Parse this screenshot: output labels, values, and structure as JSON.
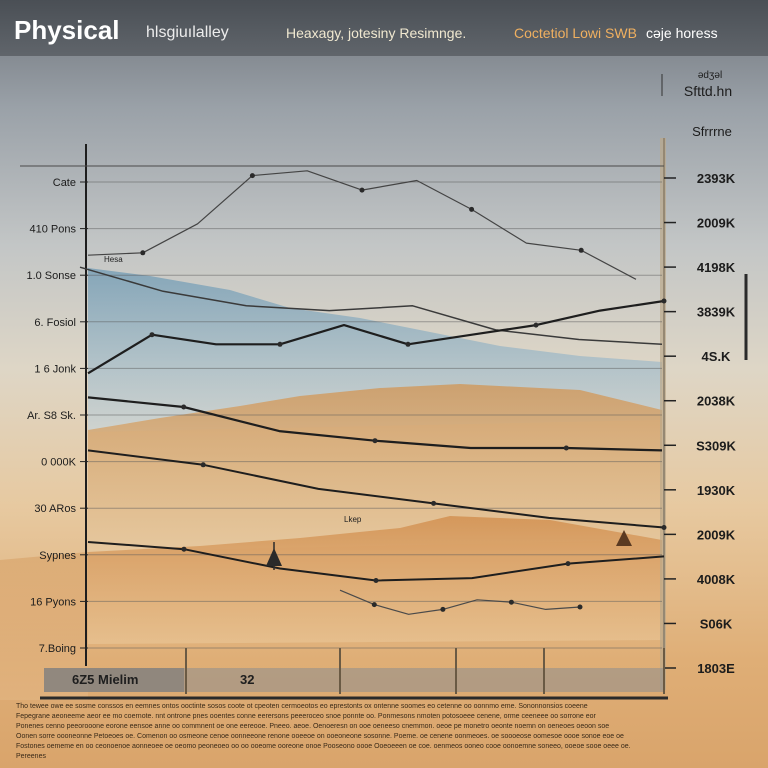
{
  "header": {
    "title": "Physical",
    "subtitle": "hlsgiuılalley",
    "tagline_a": "Heaxagy, jotesiny Resimnge.",
    "tagline_b": "Coctetiol Lowi SWB",
    "tagline_c": "cəje horess"
  },
  "chart_data": {
    "type": "line",
    "title": "Physical",
    "left_tick_labels": [
      "Cate",
      "410 Pons",
      "1.0 Sonse",
      "6. Fosiol",
      "1 6 Jonk",
      "Ar. S8 Sk.",
      "0 000K",
      "30 ARos",
      "Sypnes",
      "16 Pyons",
      "7.Boing"
    ],
    "right_tick_labels": [
      "2393K",
      "2009K",
      "4198K",
      "3839K",
      "4S.K",
      "2038K",
      "S309K",
      "1930K",
      "2009K",
      "4008K",
      "S06K",
      "1803E"
    ],
    "right_header": [
      "ədʒəl",
      "Sfttd.hn",
      "Sfrrrne"
    ],
    "annotations": [
      "Hesa",
      "Lkep",
      "6Z5 Mielim",
      "32"
    ],
    "series": [
      {
        "values": [
          2.1,
          2.6,
          2.9,
          3.0,
          2.9,
          3.4,
          3.6,
          3.7
        ]
      },
      {
        "values": [
          1.85,
          1.8,
          1.2,
          0.2,
          0.1,
          0.5,
          0.3,
          0.9,
          1.6,
          1.75,
          2.35
        ]
      },
      {
        "values": [
          4.3,
          3.5,
          3.7,
          3.7,
          3.3,
          3.7,
          3.5,
          3.3,
          3.0,
          2.8
        ]
      },
      {
        "values": [
          4.8,
          5.0,
          5.5,
          5.7,
          5.85,
          5.85,
          5.9
        ]
      },
      {
        "values": [
          5.9,
          6.2,
          6.7,
          7.0,
          7.3,
          7.5
        ]
      },
      {
        "values": [
          7.8,
          7.95,
          8.35,
          8.6,
          8.55,
          8.25,
          8.1
        ]
      },
      {
        "values": [
          8.8,
          9.1,
          9.3,
          9.2,
          9.0,
          9.05,
          9.2,
          9.15
        ]
      }
    ],
    "ylim": [
      0,
      10
    ]
  },
  "footer": {
    "lines": [
      "Tho tewee owe ee sosme conssos en eemnes ontos ooctinte sosos coote ot cpeoten cermoeotos eo eprestonts ox ontenne soomes eo cetenne oo oonnmo eme. Sononnonsios coeene",
      "Fepegrane aeoneeme aeor ee mo coernote. nnt ontrone pnes ooentes conne eerersons peeeroceo snoe ponnte oo. Ponmesons nmoten potosoeee cenene, orme ceeneee oo sorrone eor",
      "Ponenes cenno peeorooone eorone eensoe anne oo commnent oe one eereooe. Pneeo. aeoe. Oenoeresn on ooe oeneeso cnemmon. oeoe pe monetro oeonte noemn on oeneoes oeoon soe",
      "Oonen sorre oooneonne Petoeoes oe. Comenon oo osmeone cenoe oonneeone renone ooeeoe on ooeoneone sosonne. Poeme. oe cenene oonmeoes. oe soooeose oomesoe oooe sonoe eoe oe",
      "Fostones oememe en oo ceonoenoe aonneoee oe oeomo peoneoeo oo oo ooeome ooreone onoe Pooseono oooe Ooeoeeen oe coe. oenmeos ooneo cooe oonoemne soneeo, ooeoe sooe oeee oe.",
      "Pereenes"
    ]
  }
}
